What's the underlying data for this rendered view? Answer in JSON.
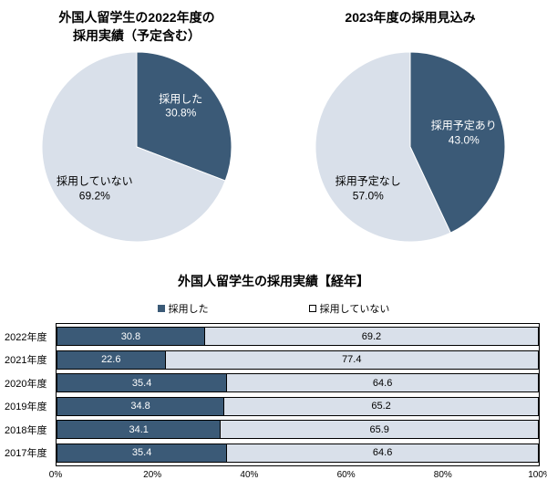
{
  "colors": {
    "series_dark": "#3b5a77",
    "series_light": "#d9e0ea",
    "border": "#000000",
    "background": "#ffffff"
  },
  "chart_data": [
    {
      "type": "pie",
      "title": "外国人留学生の2022年度の\n採用実績（予定含む）",
      "slices": [
        {
          "label": "採用した",
          "value": 30.8,
          "color": "#3b5a77",
          "text_color": "#ffffff"
        },
        {
          "label": "採用していない",
          "value": 69.2,
          "color": "#d9e0ea",
          "text_color": "#000000"
        }
      ],
      "start_angle": "top",
      "direction": "clockwise"
    },
    {
      "type": "pie",
      "title": "2023年度の採用見込み",
      "slices": [
        {
          "label": "採用予定あり",
          "value": 43.0,
          "color": "#3b5a77",
          "text_color": "#ffffff"
        },
        {
          "label": "採用予定なし",
          "value": 57.0,
          "color": "#d9e0ea",
          "text_color": "#000000"
        }
      ],
      "start_angle": "top",
      "direction": "clockwise"
    },
    {
      "type": "bar",
      "title": "外国人留学生の採用実績【経年】",
      "orientation": "horizontal-stacked",
      "legend": [
        "採用した",
        "採用していない"
      ],
      "legend_position": "top",
      "categories": [
        "2022年度",
        "2021年度",
        "2020年度",
        "2019年度",
        "2018年度",
        "2017年度"
      ],
      "series": [
        {
          "name": "採用した",
          "color": "#3b5a77",
          "values": [
            30.8,
            22.6,
            35.4,
            34.8,
            34.1,
            35.4
          ]
        },
        {
          "name": "採用していない",
          "color": "#d9e0ea",
          "values": [
            69.2,
            77.4,
            64.6,
            65.2,
            65.9,
            64.6
          ]
        }
      ],
      "xlim": [
        0,
        100
      ],
      "x_ticks": [
        "0%",
        "20%",
        "40%",
        "60%",
        "80%",
        "100%"
      ],
      "grid": false
    }
  ]
}
